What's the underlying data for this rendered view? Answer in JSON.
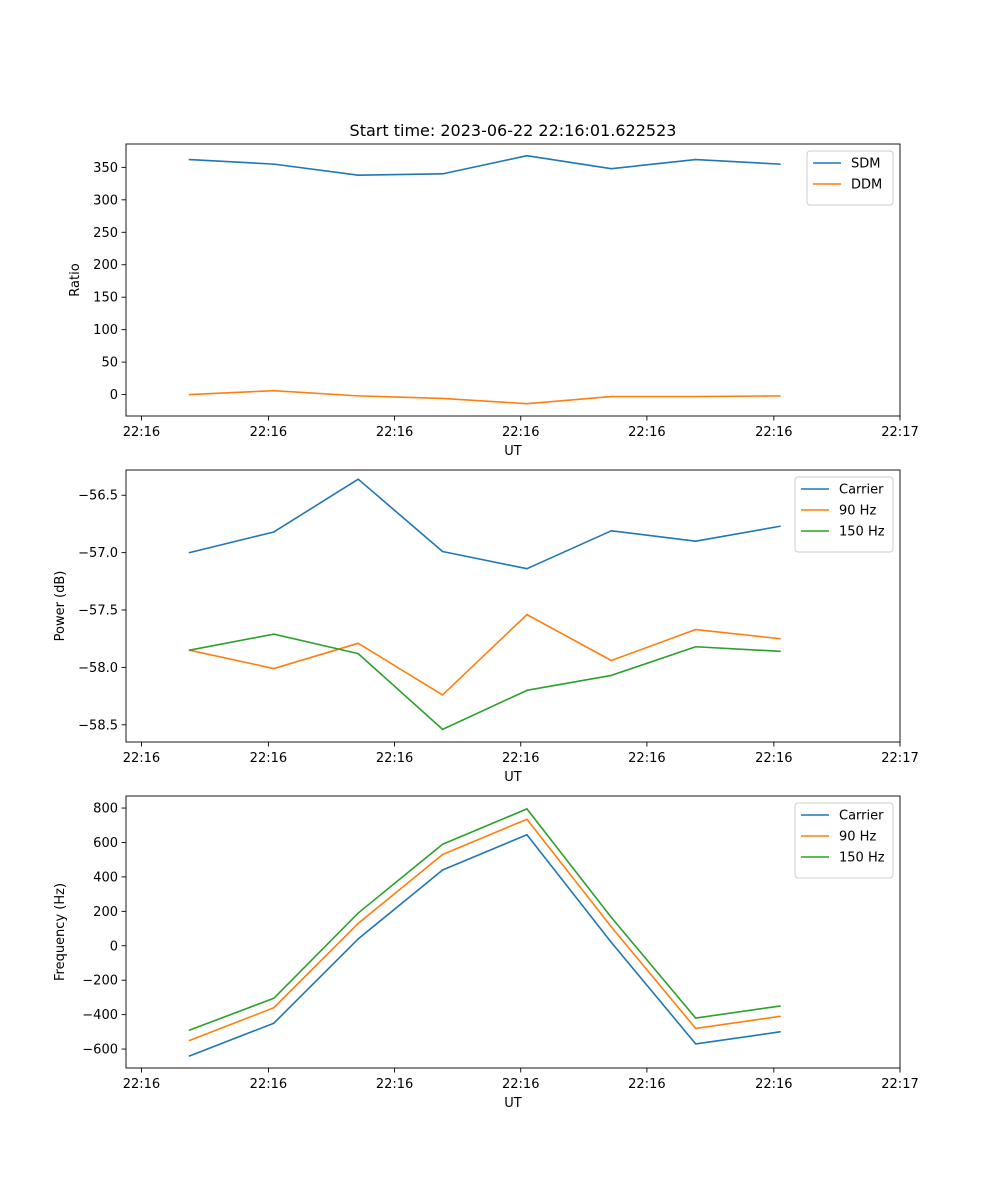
{
  "figure": {
    "title": "Start time: 2023-06-22 22:16:01.622523"
  },
  "chart_data": [
    {
      "type": "line",
      "ylabel": "Ratio",
      "xlabel": "UT",
      "xlim": [
        0,
        1
      ],
      "ylim": [
        -33,
        386
      ],
      "x_tick_labels": [
        "22:16",
        "22:16",
        "22:16",
        "22:16",
        "22:16",
        "22:16",
        "22:17"
      ],
      "y_ticks": [
        0,
        50,
        100,
        150,
        200,
        250,
        300,
        350
      ],
      "y_tick_labels": [
        "0",
        "50",
        "100",
        "150",
        "200",
        "250",
        "300",
        "350"
      ],
      "legend_position": "upper right",
      "grid": false,
      "x": [
        0.082,
        0.191,
        0.3,
        0.409,
        0.518,
        0.627,
        0.736,
        0.845
      ],
      "series": [
        {
          "name": "SDM",
          "color": "#1f77b4",
          "values": [
            362,
            355,
            338,
            340,
            368,
            348,
            362,
            355
          ]
        },
        {
          "name": "DDM",
          "color": "#ff7f0e",
          "values": [
            0,
            6,
            -2,
            -6,
            -14,
            -3,
            -3,
            -2
          ]
        }
      ]
    },
    {
      "type": "line",
      "ylabel": "Power (dB)",
      "xlabel": "UT",
      "xlim": [
        0,
        1
      ],
      "ylim": [
        -58.65,
        -56.28
      ],
      "x_tick_labels": [
        "22:16",
        "22:16",
        "22:16",
        "22:16",
        "22:16",
        "22:16",
        "22:17"
      ],
      "y_ticks": [
        -58.5,
        -58.0,
        -57.5,
        -57.0,
        -56.5
      ],
      "y_tick_labels": [
        "−58.5",
        "−58.0",
        "−57.5",
        "−57.0",
        "−56.5"
      ],
      "legend_position": "upper right",
      "grid": false,
      "x": [
        0.082,
        0.191,
        0.3,
        0.409,
        0.518,
        0.627,
        0.736,
        0.845
      ],
      "series": [
        {
          "name": "Carrier",
          "color": "#1f77b4",
          "values": [
            -57.0,
            -56.82,
            -56.36,
            -56.99,
            -57.14,
            -56.81,
            -56.9,
            -56.77
          ]
        },
        {
          "name": "90 Hz",
          "color": "#ff7f0e",
          "values": [
            -57.85,
            -58.01,
            -57.79,
            -58.24,
            -57.54,
            -57.94,
            -57.67,
            -57.75
          ]
        },
        {
          "name": "150 Hz",
          "color": "#2ca02c",
          "values": [
            -57.85,
            -57.71,
            -57.88,
            -58.54,
            -58.2,
            -58.07,
            -57.82,
            -57.86
          ]
        }
      ]
    },
    {
      "type": "line",
      "ylabel": "Frequency (Hz)",
      "xlabel": "UT",
      "xlim": [
        0,
        1
      ],
      "ylim": [
        -710,
        870
      ],
      "x_tick_labels": [
        "22:16",
        "22:16",
        "22:16",
        "22:16",
        "22:16",
        "22:16",
        "22:17"
      ],
      "y_ticks": [
        -600,
        -400,
        -200,
        0,
        200,
        400,
        600,
        800
      ],
      "y_tick_labels": [
        "−600",
        "−400",
        "−200",
        "0",
        "200",
        "400",
        "600",
        "800"
      ],
      "legend_position": "upper right",
      "grid": false,
      "x": [
        0.082,
        0.191,
        0.3,
        0.409,
        0.518,
        0.627,
        0.736,
        0.845
      ],
      "series": [
        {
          "name": "Carrier",
          "color": "#1f77b4",
          "values": [
            -640,
            -450,
            40,
            440,
            645,
            20,
            -570,
            -500
          ]
        },
        {
          "name": "90 Hz",
          "color": "#ff7f0e",
          "values": [
            -550,
            -360,
            130,
            530,
            735,
            110,
            -480,
            -410
          ]
        },
        {
          "name": "150 Hz",
          "color": "#2ca02c",
          "values": [
            -490,
            -305,
            190,
            590,
            795,
            165,
            -420,
            -350
          ]
        }
      ]
    }
  ]
}
